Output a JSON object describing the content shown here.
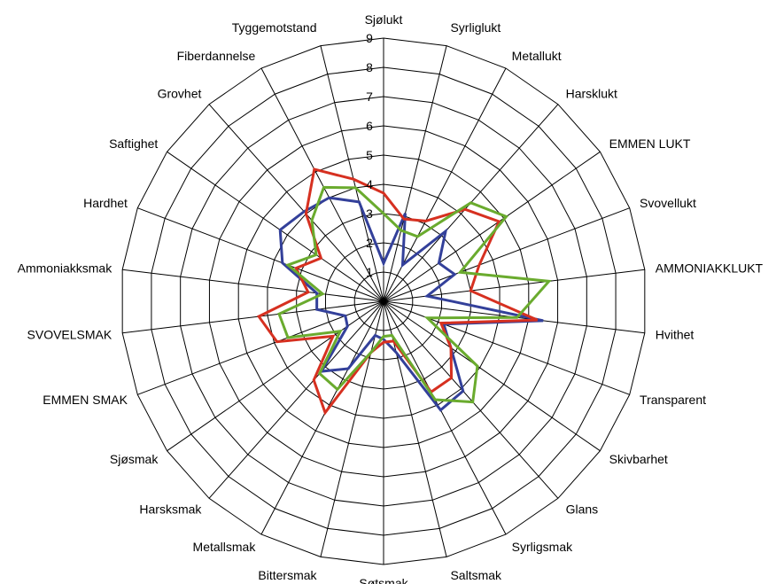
{
  "chart_data": {
    "type": "radar",
    "title": "",
    "rlim": [
      0,
      9
    ],
    "ticks": [
      "1",
      "2",
      "3",
      "4",
      "5",
      "6",
      "7",
      "8",
      "9"
    ],
    "grid": true,
    "legend": "none",
    "categories": [
      "Sjølukt",
      "Syrliglukt",
      "Metallukt",
      "Harsklukt",
      "EMMEN LUKT",
      "Svovellukt",
      "AMMONIAKKLUKT",
      "Hvithet",
      "Transparent",
      "Skivbarhet",
      "Glans",
      "Syrligsmak",
      "Saltsmak",
      "Søtsmak",
      "Bittersmak",
      "Metallsmak",
      "Harsksmak",
      "Sjøsmak",
      "EMMEN SMAK",
      "SVOVELSMAK",
      "Ammoniakksmak",
      "Hardhet",
      "Saftighet",
      "Grovhet",
      "Fiberdannelse",
      "Tyggemotstand"
    ],
    "series": [
      {
        "color": "#33409a",
        "values": [
          1.3,
          3.1,
          1.4,
          3.2,
          2.3,
          2.6,
          1.5,
          5.5,
          2.2,
          2.8,
          4.1,
          4.2,
          1.8,
          1.3,
          1.2,
          2.6,
          3.2,
          1.5,
          1.4,
          2.3,
          2.3,
          3.7,
          4.3,
          4.1,
          4.0,
          3.5
        ]
      },
      {
        "color": "#d63020",
        "values": [
          3.7,
          2.9,
          3.1,
          4.2,
          4.8,
          3.5,
          3.0,
          5.3,
          2.1,
          2.8,
          3.5,
          3.5,
          1.4,
          1.4,
          1.8,
          4.3,
          3.6,
          2.1,
          3.9,
          4.3,
          2.6,
          3.2,
          2.6,
          4.0,
          5.1,
          4.3
        ]
      },
      {
        "color": "#6aab2e",
        "values": [
          3.0,
          2.5,
          2.5,
          4.5,
          5.1,
          2.8,
          5.7,
          4.6,
          1.6,
          3.9,
          4.6,
          3.8,
          1.2,
          1.2,
          1.8,
          3.4,
          3.3,
          1.8,
          3.5,
          3.6,
          2.1,
          3.5,
          2.8,
          3.7,
          4.4,
          4.0
        ]
      }
    ]
  }
}
